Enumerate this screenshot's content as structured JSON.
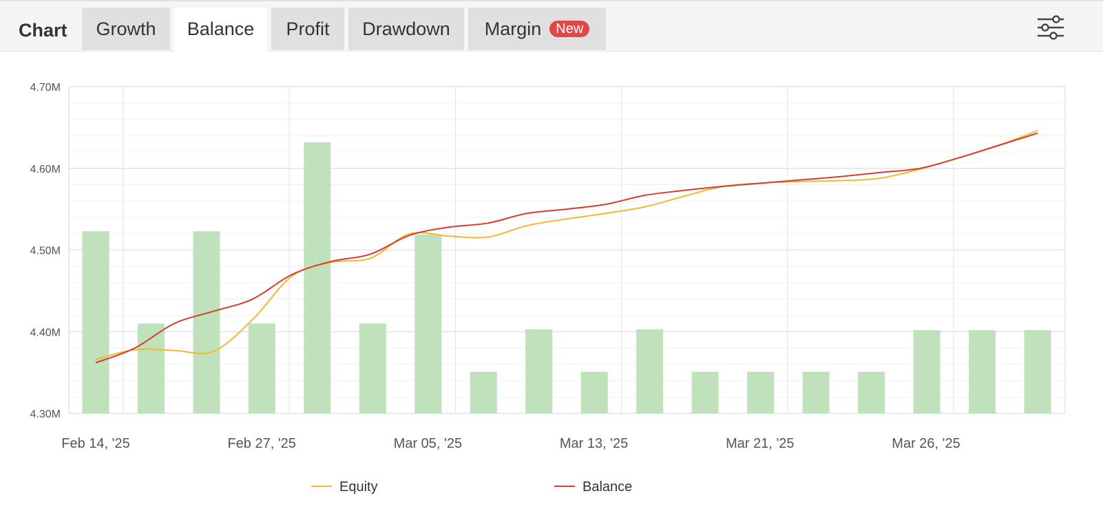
{
  "tabs": {
    "title": "Chart",
    "items": [
      {
        "label": "Growth",
        "active": false
      },
      {
        "label": "Balance",
        "active": true
      },
      {
        "label": "Profit",
        "active": false
      },
      {
        "label": "Drawdown",
        "active": false
      },
      {
        "label": "Margin",
        "active": false,
        "badge": "New"
      }
    ],
    "settings_icon": "sliders-icon"
  },
  "colors": {
    "equity": "#f5b731",
    "balance": "#d83a2d",
    "bars": "#bfe1bb",
    "badge": "#e04848"
  },
  "chart_data": {
    "type": "line",
    "y_ticks": [
      "4.30M",
      "4.40M",
      "4.50M",
      "4.60M",
      "4.70M"
    ],
    "ylim": [
      4300000,
      4700000
    ],
    "x_ticks": [
      "Feb 14, '25",
      "Feb 27, '25",
      "Mar 05, '25",
      "Mar 13, '25",
      "Mar 21, '25",
      "Mar 26, '25"
    ],
    "grid": true,
    "legend": "bottom",
    "bars": {
      "description": "volume bars plotted on the same value scale",
      "values": [
        4523000,
        4410000,
        4523000,
        4410000,
        4632000,
        4410000,
        4519000,
        4351000,
        4403000,
        4351000,
        4403000,
        4351000,
        4351000,
        4351000,
        4351000,
        4402000,
        4402000,
        4402000
      ]
    },
    "series": [
      {
        "name": "Equity",
        "values": [
          4366000,
          4378000,
          4377000,
          4376000,
          4415000,
          4468000,
          4485000,
          4490000,
          4520000,
          4517000,
          4516000,
          4530000,
          4538000,
          4545000,
          4553000,
          4566000,
          4578000,
          4582000,
          4584000,
          4585000,
          4588000,
          4599000,
          4613000,
          4628000,
          4646000
        ]
      },
      {
        "name": "Balance",
        "values": [
          4362000,
          4380000,
          4410000,
          4425000,
          4440000,
          4470000,
          4486000,
          4495000,
          4518000,
          4528000,
          4533000,
          4545000,
          4550000,
          4556000,
          4567000,
          4573000,
          4578000,
          4582000,
          4586000,
          4590000,
          4595000,
          4600000,
          4613000,
          4628000,
          4643000
        ]
      }
    ]
  }
}
